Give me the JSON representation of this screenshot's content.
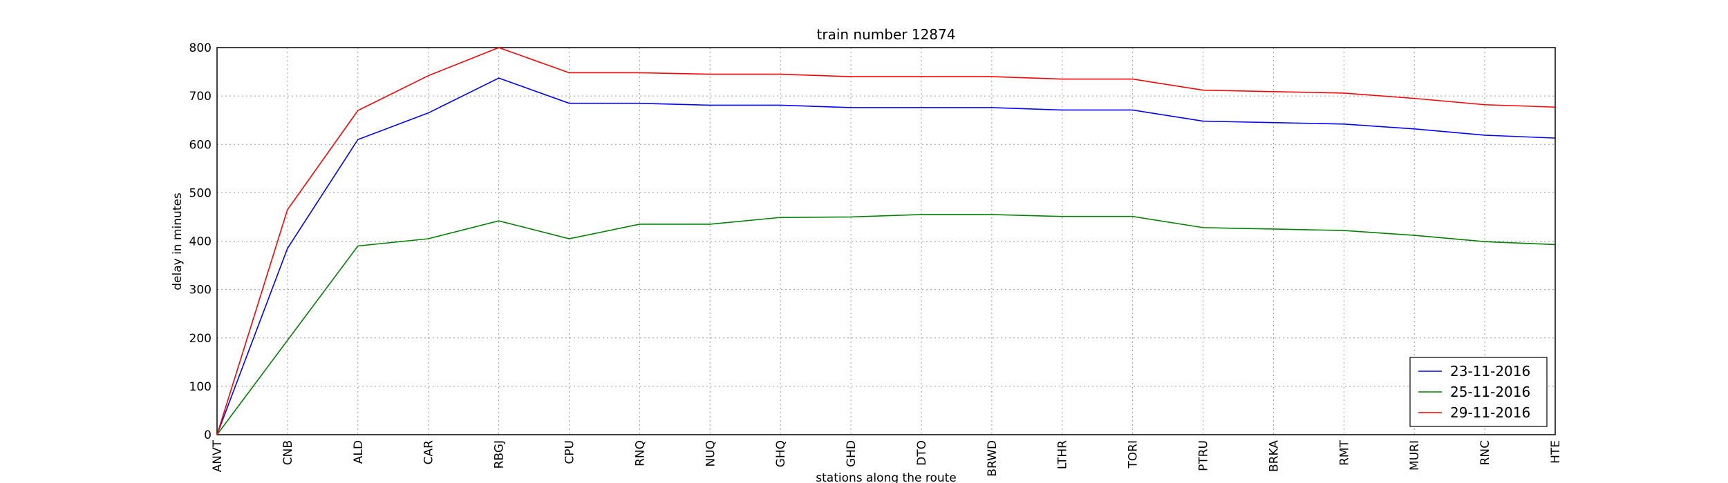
{
  "chart_data": {
    "type": "line",
    "title": "train number 12874",
    "x_label": "stations along the route",
    "y_label": "delay in minutes",
    "categories": [
      "ANVT",
      "CNB",
      "ALD",
      "CAR",
      "RBGJ",
      "CPU",
      "RNQ",
      "NUQ",
      "GHQ",
      "GHD",
      "DTO",
      "BRWD",
      "LTHR",
      "TORI",
      "PTRU",
      "BRKA",
      "RMT",
      "MURI",
      "RNC",
      "HTE"
    ],
    "series": [
      {
        "name": "23-11-2016",
        "color": "#0000ff",
        "values": [
          0,
          385,
          610,
          665,
          737,
          685,
          685,
          681,
          681,
          676,
          676,
          676,
          671,
          671,
          648,
          645,
          642,
          632,
          619,
          613
        ]
      },
      {
        "name": "25-11-2016",
        "color": "#008000",
        "values": [
          0,
          195,
          390,
          405,
          442,
          405,
          435,
          435,
          449,
          450,
          455,
          455,
          451,
          451,
          428,
          425,
          422,
          412,
          399,
          393
        ]
      },
      {
        "name": "29-11-2016",
        "color": "#ff0000",
        "values": [
          0,
          465,
          670,
          742,
          800,
          748,
          748,
          745,
          745,
          740,
          740,
          740,
          735,
          735,
          712,
          709,
          706,
          695,
          682,
          677
        ]
      }
    ],
    "ylim": [
      0,
      800
    ],
    "yticks": [
      0,
      100,
      200,
      300,
      400,
      500,
      600,
      700,
      800
    ],
    "grid": true,
    "legend": "lower right"
  }
}
